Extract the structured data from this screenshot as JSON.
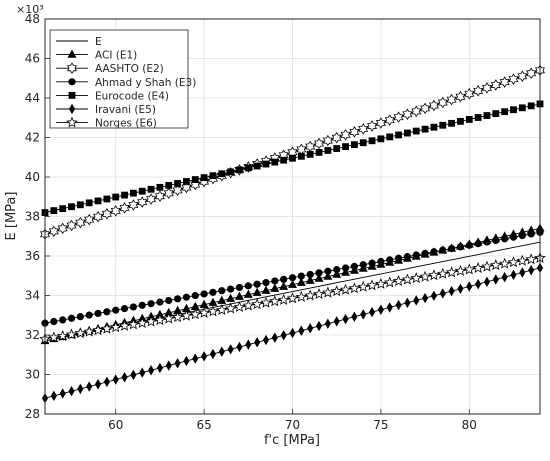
{
  "chart_data": {
    "type": "line",
    "title": "",
    "xlabel": "f'c [MPa]",
    "ylabel": "E [MPa]",
    "y_multiplier_label": "×10³",
    "xlim": [
      56,
      84
    ],
    "ylim": [
      28000,
      48000
    ],
    "x_ticks": [
      60,
      65,
      70,
      75,
      80
    ],
    "y_ticks": [
      28000,
      30000,
      32000,
      34000,
      36000,
      38000,
      40000,
      42000,
      44000,
      46000,
      48000
    ],
    "y_tick_labels": [
      "28",
      "30",
      "32",
      "34",
      "36",
      "38",
      "40",
      "42",
      "44",
      "46",
      "48"
    ],
    "x_tick_labels": [
      "60",
      "65",
      "70",
      "75",
      "80"
    ],
    "grid": true,
    "legend_position": "top-left",
    "colors": {
      "line": "#000000",
      "grid": "#dfdfdf",
      "axis": "#262626"
    },
    "x_range": {
      "start": 56,
      "end": 84,
      "step": 0.5
    },
    "series": [
      {
        "name": "E",
        "marker": "none",
        "y_start": 31700,
        "y_end": 36700
      },
      {
        "name": "ACI (E1)",
        "marker": "triangle",
        "y_start": 31700,
        "y_end": 37400
      },
      {
        "name": "AASHTO (E2)",
        "marker": "hexagram",
        "y_start": 37100,
        "y_end": 45400
      },
      {
        "name": "Ahmad y Shah (E3)",
        "marker": "circle",
        "y_start": 32600,
        "y_end": 37200
      },
      {
        "name": "Eurocode (E4)",
        "marker": "square",
        "y_start": 38200,
        "y_end": 43700
      },
      {
        "name": "Iravani (E5)",
        "marker": "diamond",
        "y_start": 28800,
        "y_end": 35400
      },
      {
        "name": "Norges (E6)",
        "marker": "pentagram",
        "y_start": 31800,
        "y_end": 35900
      }
    ]
  }
}
